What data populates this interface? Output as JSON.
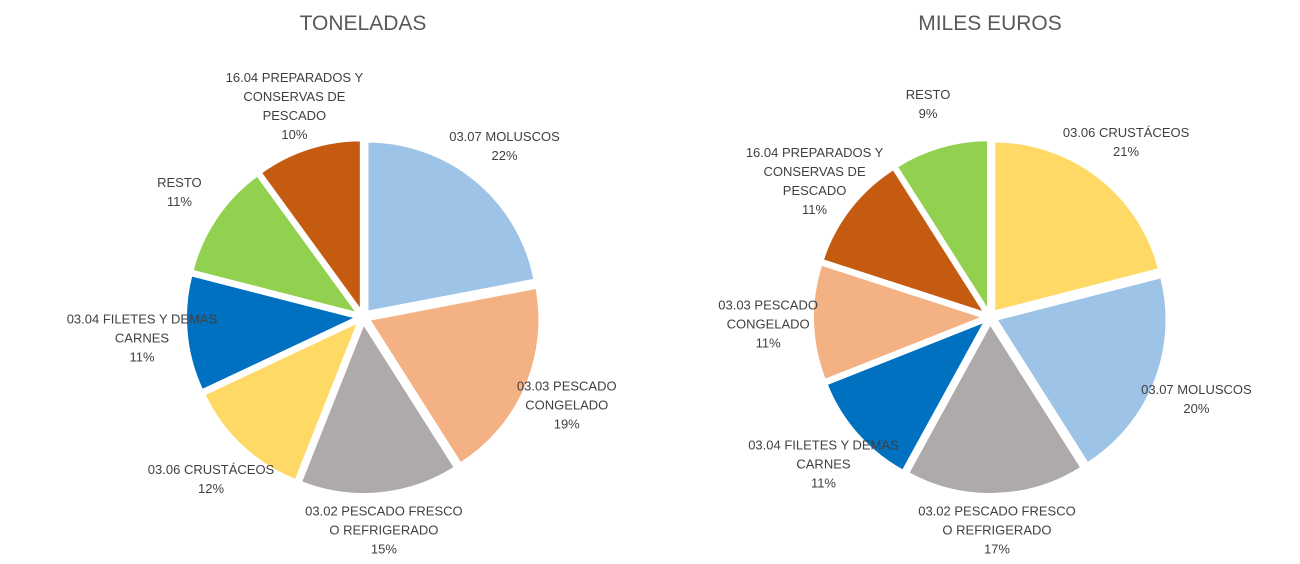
{
  "chart_data": [
    {
      "type": "pie",
      "title": "TONELADAS",
      "categories": [
        "03.07 MOLUSCOS",
        "03.03 PESCADO CONGELADO",
        "03.02 PESCADO FRESCO O REFRIGERADO",
        "03.06 CRUSTÁCEOS",
        "03.04 FILETES Y DEMAS CARNES",
        "RESTO",
        "16.04 PREPARADOS Y CONSERVAS DE PESCADO"
      ],
      "values": [
        22,
        19,
        15,
        12,
        11,
        11,
        10
      ],
      "value_labels": [
        "22%",
        "19%",
        "15%",
        "12%",
        "11%",
        "11%",
        "10%"
      ],
      "colors": [
        "#9dc3e6",
        "#f4b183",
        "#aeaaaa",
        "#ffd966",
        "#0070c0",
        "#92d050",
        "#c55a11"
      ]
    },
    {
      "type": "pie",
      "title": "MILES EUROS",
      "categories": [
        "03.06 CRUSTÁCEOS",
        "03.07 MOLUSCOS",
        "03.02 PESCADO FRESCO O REFRIGERADO",
        "03.04 FILETES Y DEMAS CARNES",
        "03.03 PESCADO CONGELADO",
        "16.04 PREPARADOS Y CONSERVAS DE PESCADO",
        "RESTO"
      ],
      "values": [
        21,
        20,
        17,
        11,
        11,
        11,
        9
      ],
      "value_labels": [
        "21%",
        "20%",
        "17%",
        "11%",
        "11%",
        "11%",
        "9%"
      ],
      "colors": [
        "#ffd966",
        "#9dc3e6",
        "#aeaaaa",
        "#0070c0",
        "#f4b183",
        "#c55a11",
        "#92d050"
      ]
    }
  ]
}
